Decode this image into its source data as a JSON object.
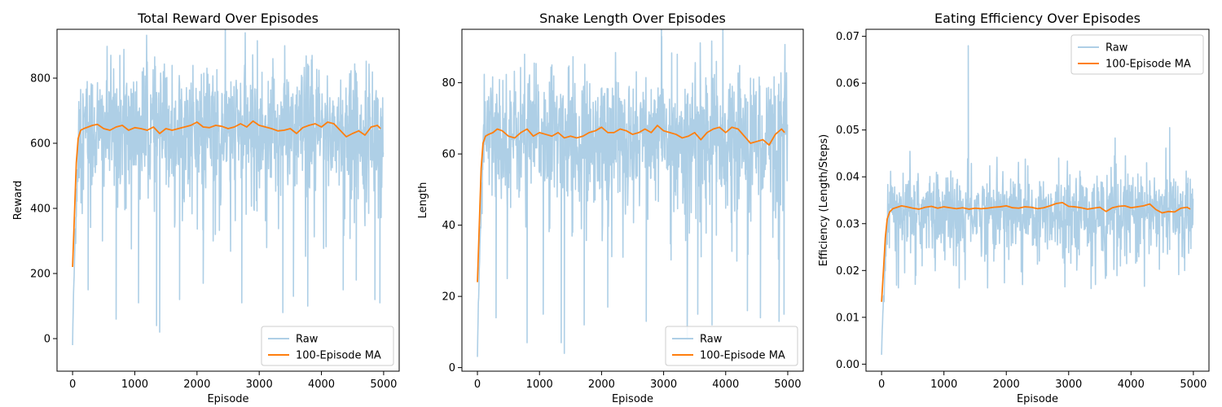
{
  "chart_data": [
    {
      "type": "line",
      "title": "Total Reward Over Episodes",
      "xlabel": "Episode",
      "ylabel": "Reward",
      "xlim": [
        -250,
        5250
      ],
      "ylim": [
        -100,
        950
      ],
      "xticks": [
        0,
        1000,
        2000,
        3000,
        4000,
        5000
      ],
      "yticks": [
        0,
        200,
        400,
        600,
        800
      ],
      "legend": "lower-right",
      "grid": false,
      "series": [
        {
          "name": "Raw",
          "color": "#aecfe6",
          "start": -20,
          "ramp_end": 100,
          "center": 640,
          "spread": 130,
          "low_spikes": [
            [
              250,
              150
            ],
            [
              480,
              300
            ],
            [
              700,
              60
            ],
            [
              1060,
              110
            ],
            [
              1350,
              40
            ],
            [
              1400,
              20
            ],
            [
              1720,
              120
            ],
            [
              2100,
              170
            ],
            [
              2260,
              300
            ],
            [
              2720,
              110
            ],
            [
              3380,
              80
            ],
            [
              3550,
              130
            ],
            [
              3780,
              100
            ],
            [
              4350,
              150
            ],
            [
              4560,
              180
            ],
            [
              4860,
              120
            ],
            [
              4940,
              110
            ]
          ],
          "high_spikes": [
            [
              760,
              870
            ],
            [
              1200,
              850
            ],
            [
              2970,
              915
            ],
            [
              3220,
              860
            ],
            [
              3850,
              870
            ]
          ]
        },
        {
          "name": "100-Episode MA",
          "color": "#ff7f0e",
          "x": [
            0,
            30,
            60,
            90,
            130,
            180,
            250,
            320,
            400,
            500,
            600,
            700,
            800,
            900,
            1000,
            1100,
            1200,
            1300,
            1400,
            1500,
            1600,
            1700,
            1800,
            1900,
            2000,
            2100,
            2200,
            2300,
            2400,
            2500,
            2600,
            2700,
            2800,
            2900,
            3000,
            3100,
            3200,
            3300,
            3400,
            3500,
            3600,
            3700,
            3800,
            3900,
            4000,
            4100,
            4200,
            4300,
            4400,
            4500,
            4600,
            4700,
            4800,
            4900,
            4950
          ],
          "y": [
            220,
            380,
            540,
            615,
            640,
            645,
            650,
            655,
            658,
            645,
            640,
            650,
            655,
            640,
            648,
            645,
            640,
            650,
            630,
            645,
            640,
            645,
            650,
            655,
            665,
            650,
            648,
            655,
            652,
            645,
            650,
            660,
            650,
            668,
            655,
            650,
            645,
            638,
            640,
            645,
            630,
            648,
            655,
            660,
            650,
            665,
            660,
            640,
            620,
            630,
            638,
            625,
            650,
            655,
            645
          ]
        }
      ]
    },
    {
      "type": "line",
      "title": "Snake Length Over Episodes",
      "xlabel": "Episode",
      "ylabel": "Length",
      "xlim": [
        -250,
        5250
      ],
      "ylim": [
        -1,
        95
      ],
      "xticks": [
        0,
        1000,
        2000,
        3000,
        4000,
        5000
      ],
      "yticks": [
        0,
        20,
        40,
        60,
        80
      ],
      "legend": "lower-right",
      "grid": false,
      "series": [
        {
          "name": "Raw",
          "color": "#aecfe6",
          "start": 3,
          "ramp_end": 100,
          "center": 65,
          "spread": 12,
          "low_spikes": [
            [
              300,
              14
            ],
            [
              480,
              25
            ],
            [
              800,
              7
            ],
            [
              1060,
              15
            ],
            [
              1350,
              7
            ],
            [
              1400,
              4
            ],
            [
              1720,
              12
            ],
            [
              2100,
              17
            ],
            [
              2720,
              13
            ],
            [
              3380,
              8
            ],
            [
              3550,
              15
            ],
            [
              3780,
              12
            ],
            [
              4350,
              16
            ],
            [
              4560,
              14
            ],
            [
              4860,
              13
            ],
            [
              4940,
              15
            ]
          ],
          "high_spikes": [
            [
              760,
              88
            ],
            [
              1200,
              85
            ],
            [
              2970,
              93
            ],
            [
              3220,
              88
            ],
            [
              3850,
              86
            ]
          ]
        },
        {
          "name": "100-Episode MA",
          "color": "#ff7f0e",
          "x": [
            0,
            30,
            60,
            90,
            130,
            180,
            250,
            320,
            400,
            500,
            600,
            700,
            800,
            900,
            1000,
            1100,
            1200,
            1300,
            1400,
            1500,
            1600,
            1700,
            1800,
            1900,
            2000,
            2100,
            2200,
            2300,
            2400,
            2500,
            2600,
            2700,
            2800,
            2900,
            3000,
            3100,
            3200,
            3300,
            3400,
            3500,
            3600,
            3700,
            3800,
            3900,
            4000,
            4100,
            4200,
            4300,
            4400,
            4500,
            4600,
            4700,
            4800,
            4900,
            4950
          ],
          "y": [
            24,
            40,
            56,
            63,
            65,
            65.5,
            66,
            67,
            66.5,
            65,
            64.5,
            66,
            67,
            65,
            66,
            65.5,
            65,
            66,
            64.5,
            65,
            64.5,
            65,
            66,
            66.5,
            67.5,
            66,
            66,
            67,
            66.5,
            65.5,
            66,
            67,
            66,
            68,
            66.5,
            66,
            65.5,
            64.5,
            65,
            66,
            64,
            66,
            67,
            67.5,
            66,
            67.5,
            67,
            65,
            63,
            63.5,
            64,
            62.5,
            65.5,
            67,
            66
          ]
        }
      ]
    },
    {
      "type": "line",
      "title": "Eating Efficiency Over Episodes",
      "xlabel": "Episode",
      "ylabel": "Efficiency (Length/Steps)",
      "xlim": [
        -250,
        5250
      ],
      "ylim": [
        -0.0015,
        0.0715
      ],
      "xticks": [
        0,
        1000,
        2000,
        3000,
        4000,
        5000
      ],
      "yticks": [
        0.0,
        0.01,
        0.02,
        0.03,
        0.04,
        0.05,
        0.06,
        0.07
      ],
      "ytick_labels": [
        "0.00",
        "0.01",
        "0.02",
        "0.03",
        "0.04",
        "0.05",
        "0.06",
        "0.07"
      ],
      "legend": "upper-right",
      "grid": false,
      "series": [
        {
          "name": "Raw",
          "color": "#aecfe6",
          "start": 0.002,
          "ramp_end": 100,
          "center": 0.0325,
          "spread": 0.0055,
          "low_spikes": [
            [
              650,
              0.021
            ],
            [
              1800,
              0.022
            ],
            [
              2260,
              0.017
            ],
            [
              3380,
              0.021
            ],
            [
              4860,
              0.02
            ]
          ],
          "high_spikes": [
            [
              1390,
              0.068
            ],
            [
              4620,
              0.0505
            ],
            [
              2840,
              0.044
            ],
            [
              3680,
              0.042
            ],
            [
              4250,
              0.043
            ]
          ]
        },
        {
          "name": "100-Episode MA",
          "color": "#ff7f0e",
          "x": [
            0,
            30,
            60,
            90,
            130,
            180,
            250,
            320,
            400,
            500,
            600,
            700,
            800,
            900,
            1000,
            1100,
            1200,
            1300,
            1400,
            1500,
            1600,
            1700,
            1800,
            1900,
            2000,
            2100,
            2200,
            2300,
            2400,
            2500,
            2600,
            2700,
            2800,
            2900,
            3000,
            3100,
            3200,
            3300,
            3400,
            3500,
            3600,
            3700,
            3800,
            3900,
            4000,
            4100,
            4200,
            4300,
            4400,
            4500,
            4600,
            4700,
            4800,
            4900,
            4950
          ],
          "y": [
            0.0133,
            0.02,
            0.027,
            0.031,
            0.0325,
            0.0332,
            0.0335,
            0.0338,
            0.0336,
            0.0333,
            0.0331,
            0.0335,
            0.0337,
            0.0333,
            0.0336,
            0.0334,
            0.0332,
            0.0334,
            0.0331,
            0.0333,
            0.0332,
            0.0333,
            0.0335,
            0.0336,
            0.0338,
            0.0334,
            0.0333,
            0.0336,
            0.0335,
            0.0332,
            0.0334,
            0.0338,
            0.0343,
            0.0345,
            0.0337,
            0.0336,
            0.0334,
            0.0331,
            0.0333,
            0.0335,
            0.0326,
            0.0334,
            0.0337,
            0.0338,
            0.0334,
            0.0336,
            0.0338,
            0.0342,
            0.033,
            0.0323,
            0.0326,
            0.0325,
            0.0333,
            0.0335,
            0.0331
          ]
        }
      ]
    }
  ]
}
